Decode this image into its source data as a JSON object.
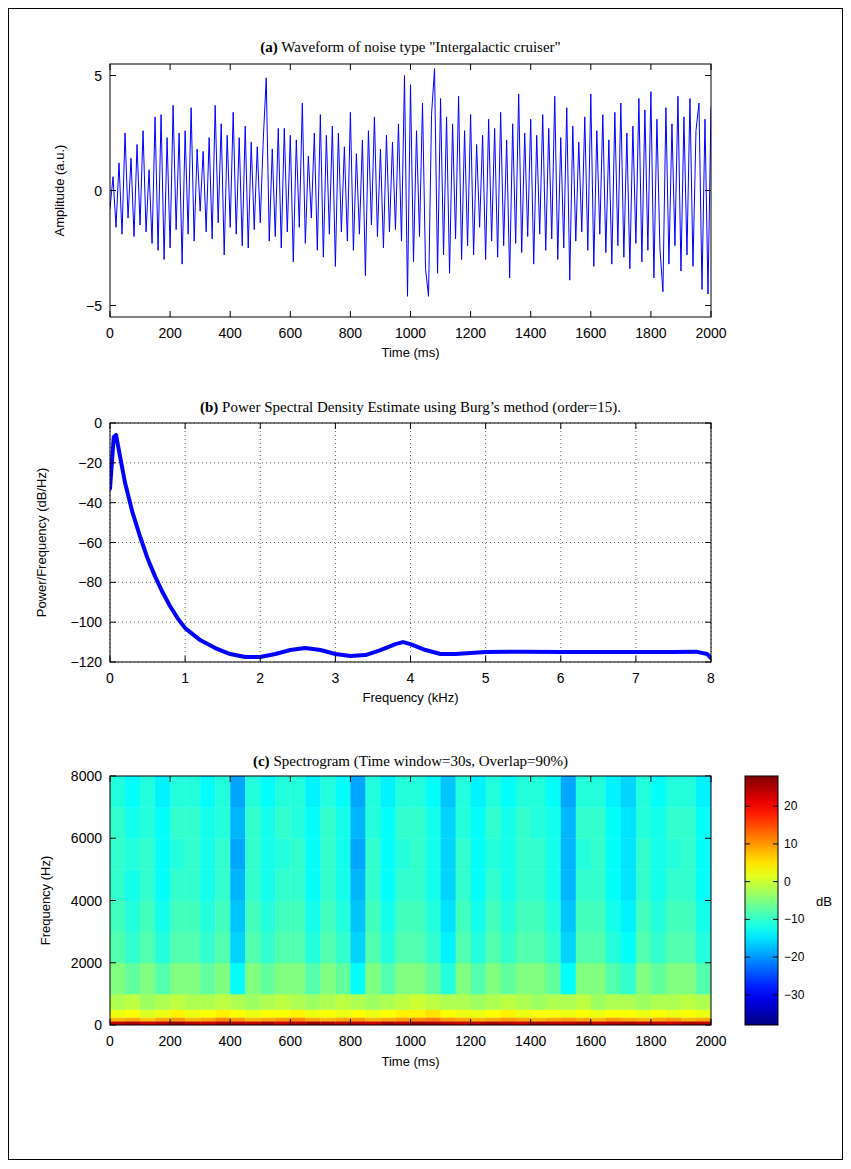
{
  "chart_data": [
    {
      "type": "line",
      "title": "(a) Waveform of noise type \"Intergalactic cruiser\"",
      "x_label": "Time (ms)",
      "y_label": "Amplitude (a.u.)",
      "color": "#0000ff",
      "grid": false,
      "xlim": [
        0,
        2000
      ],
      "xticks": [
        0,
        200,
        400,
        600,
        800,
        1000,
        1200,
        1400,
        1600,
        1800,
        2000
      ],
      "ylim": [
        -5.5,
        5.5
      ],
      "yticks": [
        {
          "value": -5,
          "label": "−5"
        },
        0,
        5
      ],
      "x": [
        0,
        10,
        20,
        30,
        40,
        50,
        60,
        70,
        80,
        90,
        100,
        110,
        120,
        130,
        140,
        150,
        160,
        170,
        180,
        190,
        200,
        210,
        220,
        230,
        240,
        250,
        260,
        270,
        280,
        290,
        300,
        310,
        320,
        330,
        340,
        350,
        360,
        370,
        380,
        390,
        400,
        410,
        420,
        430,
        440,
        450,
        460,
        470,
        480,
        490,
        500,
        510,
        520,
        530,
        540,
        550,
        560,
        570,
        580,
        590,
        600,
        610,
        620,
        630,
        640,
        650,
        660,
        670,
        680,
        690,
        700,
        710,
        720,
        730,
        740,
        750,
        760,
        770,
        780,
        790,
        800,
        810,
        820,
        830,
        840,
        850,
        860,
        870,
        880,
        890,
        900,
        910,
        920,
        930,
        940,
        950,
        960,
        970,
        980,
        990,
        1000,
        1010,
        1020,
        1030,
        1040,
        1050,
        1060,
        1070,
        1080,
        1090,
        1100,
        1110,
        1120,
        1130,
        1140,
        1150,
        1160,
        1170,
        1180,
        1190,
        1200,
        1210,
        1220,
        1230,
        1240,
        1250,
        1260,
        1270,
        1280,
        1290,
        1300,
        1310,
        1320,
        1330,
        1340,
        1350,
        1360,
        1370,
        1380,
        1390,
        1400,
        1410,
        1420,
        1430,
        1440,
        1450,
        1460,
        1470,
        1480,
        1490,
        1500,
        1510,
        1520,
        1530,
        1540,
        1550,
        1560,
        1570,
        1580,
        1590,
        1600,
        1610,
        1620,
        1630,
        1640,
        1650,
        1660,
        1670,
        1680,
        1690,
        1700,
        1710,
        1720,
        1730,
        1740,
        1750,
        1760,
        1770,
        1780,
        1790,
        1800,
        1810,
        1820,
        1830,
        1840,
        1850,
        1860,
        1870,
        1880,
        1890,
        1900,
        1910,
        1920,
        1930,
        1940,
        1950,
        1960,
        1970,
        1980,
        1990,
        2000
      ],
      "values": [
        -0.8,
        0.6,
        -1.6,
        1.2,
        -1.9,
        2.5,
        -1.2,
        1.4,
        -2.0,
        2.0,
        -1.5,
        2.6,
        -1.8,
        0.9,
        -2.3,
        3.2,
        -2.6,
        3.3,
        -3.0,
        2.3,
        -2.5,
        3.7,
        -1.7,
        2.5,
        -3.2,
        2.6,
        -1.9,
        3.6,
        -2.2,
        1.8,
        -0.9,
        1.7,
        -1.8,
        2.3,
        -2.1,
        3.7,
        -1.4,
        2.9,
        -2.8,
        2.4,
        -1.6,
        3.4,
        -1.9,
        2.3,
        -2.4,
        2.8,
        -2.5,
        2.1,
        -1.7,
        1.9,
        -1.4,
        2.2,
        4.9,
        -2.2,
        1.8,
        -2.0,
        2.7,
        -2.5,
        2.7,
        -1.8,
        2.4,
        -3.1,
        2.2,
        -1.6,
        3.8,
        -2.3,
        1.5,
        -1.2,
        2.5,
        -2.6,
        3.3,
        -2.9,
        2.4,
        -1.9,
        2.8,
        -3.3,
        2.5,
        -1.8,
        1.9,
        -2.2,
        3.4,
        -2.6,
        1.6,
        -1.9,
        2.2,
        -3.7,
        2.6,
        -1.5,
        3.2,
        -2.0,
        1.8,
        -2.5,
        2.4,
        -1.8,
        2.1,
        -1.7,
        2.9,
        -2.2,
        5.0,
        -4.6,
        4.6,
        -3.1,
        2.6,
        -2.0,
        3.8,
        -3.4,
        -4.6,
        3.3,
        5.3,
        -3.6,
        4.0,
        -2.8,
        3.2,
        -3.6,
        2.9,
        -2.1,
        4.1,
        -3.0,
        2.6,
        -2.4,
        3.3,
        -2.8,
        2.0,
        -1.6,
        2.4,
        -3.0,
        3.1,
        -2.2,
        2.7,
        -2.9,
        3.4,
        -2.4,
        2.2,
        -3.8,
        2.9,
        -2.3,
        4.2,
        -2.7,
        2.5,
        -2.0,
        3.1,
        -3.2,
        2.4,
        -1.9,
        3.3,
        -2.6,
        2.7,
        -2.1,
        4.1,
        -3.0,
        2.3,
        -2.5,
        3.6,
        -3.9,
        2.8,
        -2.2,
        2.1,
        -1.8,
        3.2,
        -2.6,
        4.2,
        -3.3,
        2.6,
        -1.9,
        3.3,
        -2.7,
        2.2,
        -3.2,
        3.4,
        -2.4,
        3.8,
        -2.9,
        2.5,
        -3.4,
        2.8,
        -2.3,
        4.0,
        -3.1,
        3.5,
        -2.6,
        4.3,
        -3.8,
        3.1,
        -2.5,
        -4.4,
        3.6,
        -3.2,
        2.9,
        -2.4,
        4.1,
        -3.5,
        3.2,
        -2.8,
        4.0,
        -3.3,
        2.6,
        3.8,
        -4.3,
        3.1,
        -4.5,
        3.6
      ]
    },
    {
      "type": "line",
      "title": "(b) Power Spectral Density Estimate using Burg’s method (order=15).",
      "x_label": "Frequency (kHz)",
      "y_label": "Power/Frequency (dB/Hz)",
      "color": "#0000ff",
      "grid": true,
      "xlim": [
        0,
        8
      ],
      "xticks": [
        0,
        1,
        2,
        3,
        4,
        5,
        6,
        7,
        8
      ],
      "ylim": [
        -120,
        0
      ],
      "yticks": [
        {
          "value": -120,
          "label": "−120"
        },
        {
          "value": -100,
          "label": "−100"
        },
        {
          "value": -80,
          "label": "−80"
        },
        {
          "value": -60,
          "label": "−60"
        },
        {
          "value": -40,
          "label": "−40"
        },
        {
          "value": -20,
          "label": "−20"
        },
        0
      ],
      "x": [
        0,
        0.05,
        0.08,
        0.1,
        0.15,
        0.2,
        0.3,
        0.4,
        0.5,
        0.6,
        0.7,
        0.8,
        0.9,
        1.0,
        1.2,
        1.4,
        1.6,
        1.8,
        2.0,
        2.2,
        2.4,
        2.6,
        2.8,
        3.0,
        3.2,
        3.4,
        3.6,
        3.8,
        3.9,
        4.0,
        4.2,
        4.4,
        4.6,
        5.0,
        5.5,
        6.0,
        6.5,
        7.0,
        7.5,
        7.8,
        7.95,
        8.0
      ],
      "values": [
        -33,
        -7,
        -6,
        -10,
        -20,
        -30,
        -45,
        -57,
        -68,
        -77,
        -85,
        -92,
        -98,
        -103,
        -109,
        -113,
        -116,
        -117.5,
        -117.5,
        -116,
        -114,
        -113,
        -114,
        -116,
        -117,
        -116.5,
        -114,
        -111,
        -110,
        -111,
        -114,
        -116,
        -116,
        -115,
        -114.8,
        -115,
        -115,
        -115,
        -115,
        -114.8,
        -116,
        -118
      ]
    },
    {
      "type": "heatmap",
      "title": "(c) Spectrogram (Time window=30s, Overlap=90%)",
      "x_label": "Time (ms)",
      "y_label": "Frequency (Hz)",
      "xlim": [
        0,
        2000
      ],
      "xticks": [
        0,
        200,
        400,
        600,
        800,
        1000,
        1200,
        1400,
        1600,
        1800,
        2000
      ],
      "ylim": [
        0,
        8000
      ],
      "yticks": [
        0,
        2000,
        4000,
        6000,
        8000
      ],
      "x_edges": [
        0,
        50,
        100,
        150,
        200,
        250,
        300,
        350,
        400,
        450,
        500,
        550,
        600,
        650,
        700,
        750,
        800,
        850,
        900,
        950,
        1000,
        1050,
        1100,
        1150,
        1200,
        1250,
        1300,
        1350,
        1400,
        1450,
        1500,
        1550,
        1600,
        1650,
        1700,
        1750,
        1800,
        1850,
        1900,
        1950,
        2000
      ],
      "y_edges": [
        0,
        125,
        250,
        500,
        1000,
        2000,
        3000,
        4000,
        5000,
        6000,
        7000,
        8000
      ],
      "z": [
        [
          24,
          25,
          23,
          24,
          26,
          24,
          23,
          25,
          24,
          24,
          25,
          23,
          24,
          26,
          25,
          24,
          24,
          23,
          25,
          24,
          26,
          25,
          24,
          23,
          24,
          25,
          24,
          23,
          25,
          24,
          24,
          25,
          23,
          24,
          25,
          24,
          24,
          23,
          25,
          24
        ],
        [
          8,
          9,
          7,
          9,
          10,
          8,
          9,
          11,
          10,
          8,
          9,
          10,
          11,
          9,
          8,
          9,
          10,
          8,
          9,
          10,
          11,
          12,
          10,
          9,
          8,
          9,
          10,
          9,
          8,
          9,
          10,
          9,
          8,
          10,
          9,
          8,
          9,
          10,
          8,
          9
        ],
        [
          2,
          3,
          1,
          2,
          4,
          2,
          3,
          4,
          3,
          2,
          3,
          3,
          4,
          2,
          3,
          2,
          3,
          2,
          3,
          4,
          4,
          5,
          3,
          2,
          2,
          3,
          4,
          2,
          3,
          3,
          2,
          3,
          2,
          3,
          3,
          2,
          3,
          2,
          3,
          2
        ],
        [
          -2,
          -1,
          -3,
          -2,
          -1,
          -2,
          -2,
          -1,
          -2,
          -3,
          -2,
          -1,
          -2,
          -3,
          -2,
          -1,
          -2,
          -3,
          -2,
          -1,
          0,
          -1,
          -2,
          -2,
          -3,
          -2,
          -1,
          -2,
          -3,
          -2,
          -2,
          -1,
          -3,
          -2,
          -2,
          -3,
          -2,
          -2,
          -1,
          -2
        ],
        [
          -5,
          -7,
          -5,
          -8,
          -5,
          -5,
          -7,
          -5,
          -13,
          -5,
          -7,
          -5,
          -5,
          -8,
          -5,
          -7,
          -13,
          -5,
          -8,
          -5,
          -5,
          -7,
          -11,
          -5,
          -8,
          -5,
          -7,
          -5,
          -5,
          -7,
          -13,
          -5,
          -5,
          -8,
          -10,
          -5,
          -7,
          -5,
          -5,
          -8
        ],
        [
          -8,
          -10,
          -8,
          -11,
          -8,
          -8,
          -10,
          -8,
          -16,
          -8,
          -10,
          -8,
          -8,
          -11,
          -8,
          -10,
          -16,
          -8,
          -11,
          -8,
          -8,
          -10,
          -14,
          -8,
          -11,
          -8,
          -10,
          -8,
          -8,
          -10,
          -16,
          -8,
          -8,
          -11,
          -13,
          -8,
          -10,
          -8,
          -8,
          -11
        ],
        [
          -9,
          -11,
          -9,
          -12,
          -9,
          -9,
          -11,
          -9,
          -17,
          -9,
          -11,
          -9,
          -9,
          -12,
          -9,
          -11,
          -17,
          -9,
          -12,
          -9,
          -9,
          -11,
          -15,
          -9,
          -12,
          -9,
          -11,
          -9,
          -9,
          -11,
          -17,
          -9,
          -9,
          -12,
          -14,
          -9,
          -11,
          -9,
          -9,
          -12
        ],
        [
          -10,
          -12,
          -10,
          -13,
          -10,
          -10,
          -12,
          -10,
          -18,
          -10,
          -12,
          -10,
          -10,
          -13,
          -10,
          -12,
          -18,
          -10,
          -13,
          -10,
          -10,
          -12,
          -16,
          -10,
          -13,
          -10,
          -12,
          -10,
          -10,
          -12,
          -18,
          -10,
          -10,
          -13,
          -15,
          -10,
          -12,
          -10,
          -10,
          -13
        ],
        [
          -10,
          -11,
          -10,
          -13,
          -11,
          -10,
          -12,
          -10,
          -19,
          -10,
          -12,
          -11,
          -10,
          -13,
          -10,
          -12,
          -19,
          -10,
          -13,
          -11,
          -10,
          -12,
          -16,
          -10,
          -13,
          -11,
          -12,
          -10,
          -10,
          -12,
          -18,
          -11,
          -10,
          -13,
          -15,
          -10,
          -12,
          -11,
          -10,
          -13
        ],
        [
          -10,
          -12,
          -11,
          -13,
          -10,
          -10,
          -12,
          -11,
          -18,
          -10,
          -12,
          -10,
          -11,
          -13,
          -10,
          -12,
          -18,
          -11,
          -13,
          -10,
          -10,
          -12,
          -16,
          -11,
          -13,
          -10,
          -12,
          -10,
          -11,
          -12,
          -18,
          -10,
          -10,
          -13,
          -15,
          -11,
          -12,
          -10,
          -10,
          -13
        ],
        [
          -11,
          -13,
          -11,
          -14,
          -11,
          -11,
          -13,
          -11,
          -19,
          -11,
          -13,
          -11,
          -11,
          -14,
          -11,
          -13,
          -19,
          -11,
          -14,
          -11,
          -11,
          -13,
          -17,
          -11,
          -14,
          -11,
          -13,
          -11,
          -11,
          -13,
          -19,
          -11,
          -11,
          -14,
          -16,
          -11,
          -13,
          -11,
          -11,
          -14
        ]
      ],
      "colorbar": {
        "range": [
          -38,
          28
        ],
        "label": "dB",
        "ticks": [
          {
            "value": -30,
            "label": "−30"
          },
          {
            "value": -20,
            "label": "−20"
          },
          {
            "value": -10,
            "label": "−10"
          },
          0,
          10,
          20
        ]
      }
    }
  ]
}
